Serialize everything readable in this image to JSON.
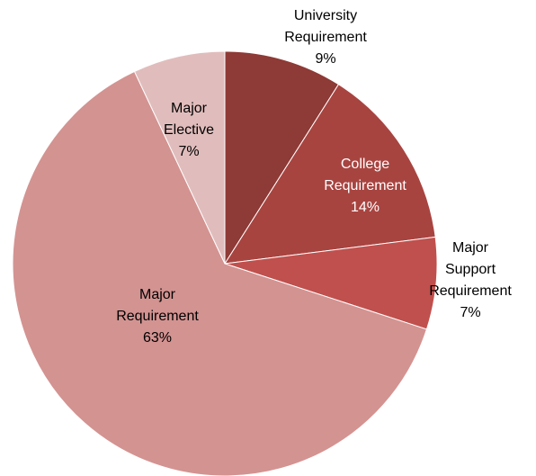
{
  "chart_data": {
    "type": "pie",
    "title": "",
    "legend": "none",
    "slices": [
      {
        "label_lines": [
          "University",
          "Requirement"
        ],
        "value": 9,
        "value_label": "9%",
        "color": "#8E3A36",
        "label_color": "#000000"
      },
      {
        "label_lines": [
          "College",
          "Requirement"
        ],
        "value": 14,
        "value_label": "14%",
        "color": "#A84440",
        "label_color": "#ffffff"
      },
      {
        "label_lines": [
          "Major",
          "Support",
          "Requirement"
        ],
        "value": 7,
        "value_label": "7%",
        "color": "#C0504D",
        "label_color": "#000000"
      },
      {
        "label_lines": [
          "Major",
          "Requirement"
        ],
        "value": 63,
        "value_label": "63%",
        "color": "#D39391",
        "label_color": "#000000"
      },
      {
        "label_lines": [
          "Major",
          "Elective"
        ],
        "value": 7,
        "value_label": "7%",
        "color": "#E0BDBC",
        "label_color": "#000000"
      }
    ]
  }
}
